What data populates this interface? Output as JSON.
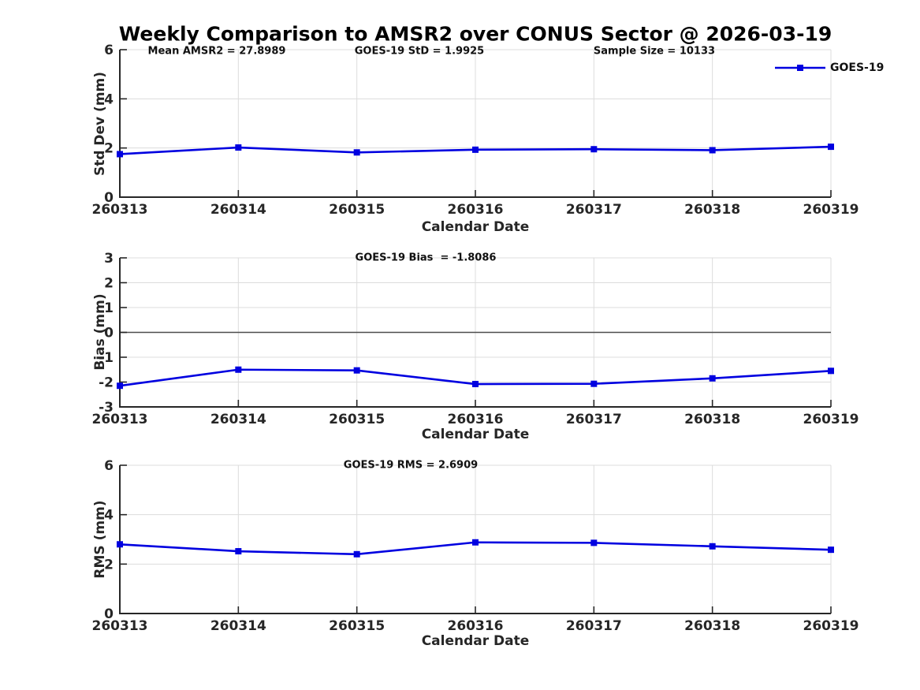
{
  "title": "Weekly Comparison to AMSR2 over CONUS Sector @ 2026-03-19",
  "legend": {
    "label": "GOES-19",
    "color": "#0000E0",
    "position": "northeast-outside"
  },
  "colors": {
    "series_blue": "#0000E0",
    "grid": "#dcdcdc",
    "axis": "#262626",
    "zero_line": "#4d4d4d",
    "text": "#262626"
  },
  "chart_data": [
    {
      "type": "line",
      "categories": [
        "260313",
        "260314",
        "260315",
        "260316",
        "260317",
        "260318",
        "260319"
      ],
      "xlabel": "Calendar Date",
      "ylabel": "Std Dev (mm)",
      "ylim": [
        0,
        6
      ],
      "yticks": [
        0,
        2,
        4,
        6
      ],
      "grid": true,
      "zero_line": false,
      "annotations": [
        {
          "text": "Mean AMSR2 = 27.8989"
        },
        {
          "text": "GOES-19 StD = 1.9925"
        },
        {
          "text": "Sample Size = 10133"
        }
      ],
      "series": [
        {
          "name": "GOES-19",
          "color": "#0000E0",
          "marker": "square",
          "values": [
            1.75,
            2.02,
            1.82,
            1.93,
            1.95,
            1.91,
            2.05
          ]
        }
      ]
    },
    {
      "type": "line",
      "categories": [
        "260313",
        "260314",
        "260315",
        "260316",
        "260317",
        "260318",
        "260319"
      ],
      "xlabel": "Calendar Date",
      "ylabel": "Bias (mm)",
      "ylim": [
        -3,
        3
      ],
      "yticks": [
        -3,
        -2,
        -1,
        0,
        1,
        2,
        3
      ],
      "grid": true,
      "zero_line": true,
      "annotations": [
        {
          "text": "GOES-19 Bias  = -1.8086"
        }
      ],
      "series": [
        {
          "name": "GOES-19",
          "color": "#0000E0",
          "marker": "square",
          "values": [
            -2.15,
            -1.5,
            -1.53,
            -2.08,
            -2.07,
            -1.85,
            -1.55
          ]
        }
      ]
    },
    {
      "type": "line",
      "categories": [
        "260313",
        "260314",
        "260315",
        "260316",
        "260317",
        "260318",
        "260319"
      ],
      "xlabel": "Calendar Date",
      "ylabel": "RMS (mm)",
      "ylim": [
        0,
        6
      ],
      "yticks": [
        0,
        2,
        4,
        6
      ],
      "grid": true,
      "zero_line": false,
      "annotations": [
        {
          "text": "GOES-19 RMS = 2.6909"
        }
      ],
      "series": [
        {
          "name": "GOES-19",
          "color": "#0000E0",
          "marker": "square",
          "values": [
            2.8,
            2.52,
            2.4,
            2.88,
            2.86,
            2.72,
            2.58
          ]
        }
      ]
    }
  ]
}
